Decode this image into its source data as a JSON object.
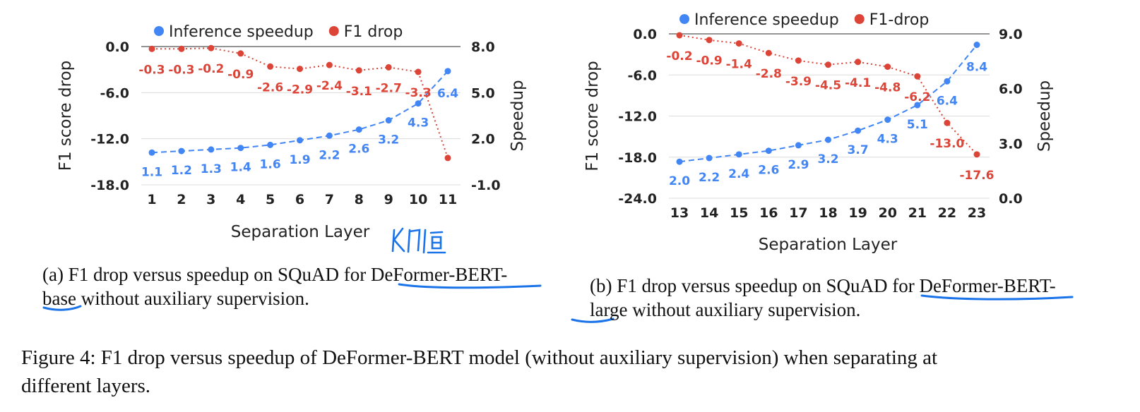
{
  "chart_data": [
    {
      "type": "line",
      "legend": [
        "Inference speedup",
        "F1 drop"
      ],
      "legend_position": "top",
      "xlabel": "Separation Layer",
      "ylabel_left": "F1 score drop",
      "ylabel_right": "Speedup",
      "x": [
        "1",
        "2",
        "3",
        "4",
        "5",
        "6",
        "7",
        "8",
        "9",
        "10",
        "11"
      ],
      "yleft_ticks": [
        "0.0",
        "-6.0",
        "-12.0",
        "-18.0"
      ],
      "yleft_range": [
        -18,
        0
      ],
      "yright_ticks": [
        "8.0",
        "5.0",
        "2.0",
        "-1.0"
      ],
      "yright_range": [
        -1,
        8
      ],
      "series": [
        {
          "name": "Inference speedup",
          "axis": "right",
          "color": "#4285f4",
          "style": "dashed",
          "values": [
            1.1,
            1.2,
            1.3,
            1.4,
            1.6,
            1.9,
            2.2,
            2.6,
            3.2,
            4.3,
            6.4
          ],
          "labels": [
            "1.1",
            "1.2",
            "1.3",
            "1.4",
            "1.6",
            "1.9",
            "2.2",
            "2.6",
            "3.2",
            "4.3",
            "6.4"
          ]
        },
        {
          "name": "F1 drop",
          "axis": "left",
          "color": "#db4437",
          "style": "dotted",
          "values": [
            -0.3,
            -0.3,
            -0.2,
            -0.9,
            -2.6,
            -2.9,
            -2.4,
            -3.1,
            -2.7,
            -3.3,
            -14.5
          ],
          "labels": [
            "-0.3",
            "-0.3",
            "-0.2",
            "-0.9",
            "-2.6",
            "-2.9",
            "-2.4",
            "-3.1",
            "-2.7",
            "-3.3",
            ""
          ]
        }
      ],
      "annotation": "K门值"
    },
    {
      "type": "line",
      "legend": [
        "Inference speedup",
        "F1-drop"
      ],
      "legend_position": "top",
      "xlabel": "Separation Layer",
      "ylabel_left": "F1 score drop",
      "ylabel_right": "Speedup",
      "x": [
        "13",
        "14",
        "15",
        "16",
        "17",
        "18",
        "19",
        "20",
        "21",
        "22",
        "23"
      ],
      "yleft_ticks": [
        "0.0",
        "-6.0",
        "-12.0",
        "-18.0",
        "-24.0"
      ],
      "yleft_range": [
        -24,
        0
      ],
      "yright_ticks": [
        "9.0",
        "6.0",
        "3.0",
        "0.0"
      ],
      "yright_range": [
        0,
        9
      ],
      "series": [
        {
          "name": "Inference speedup",
          "axis": "right",
          "color": "#4285f4",
          "style": "dashed",
          "values": [
            2.0,
            2.2,
            2.4,
            2.6,
            2.9,
            3.2,
            3.7,
            4.3,
            5.1,
            6.4,
            8.4
          ],
          "labels": [
            "2.0",
            "2.2",
            "2.4",
            "2.6",
            "2.9",
            "3.2",
            "3.7",
            "4.3",
            "5.1",
            "6.4",
            "8.4"
          ]
        },
        {
          "name": "F1-drop",
          "axis": "left",
          "color": "#db4437",
          "style": "dotted",
          "values": [
            -0.2,
            -0.9,
            -1.4,
            -2.8,
            -3.9,
            -4.5,
            -4.1,
            -4.8,
            -6.2,
            -13.0,
            -17.6
          ],
          "labels": [
            "-0.2",
            "-0.9",
            "-1.4",
            "-2.8",
            "-3.9",
            "-4.5",
            "-4.1",
            "-4.8",
            "-6.2",
            "-13.0",
            "-17.6"
          ]
        }
      ]
    }
  ],
  "captions": {
    "a_line1": "(a) F1 drop versus speedup on SQuAD for DeFormer-BERT-",
    "a_line2": "base without auxiliary supervision.",
    "b_line1": "(b) F1 drop versus speedup on SQuAD for DeFormer-BERT-",
    "b_line2": "large without auxiliary supervision.",
    "figure_line1": "Figure 4: F1 drop versus speedup of DeFormer-BERT model (without auxiliary supervision) when separating at",
    "figure_line2": "different layers."
  }
}
